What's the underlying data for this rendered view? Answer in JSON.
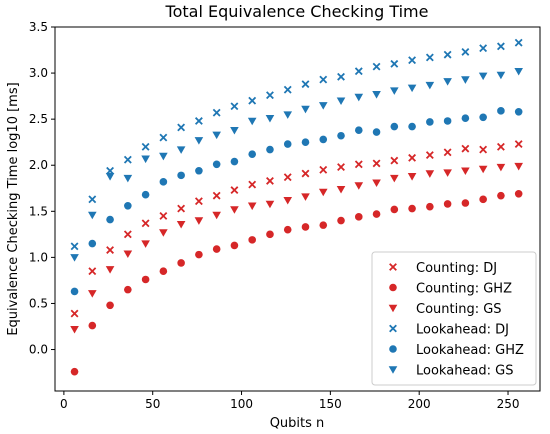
{
  "chart_data": {
    "type": "scatter",
    "title": "Total Equivalence Checking Time",
    "xlabel": "Qubits n",
    "ylabel": "Equivalence Checking Time log10 [ms]",
    "xlim": [
      -5,
      268
    ],
    "ylim": [
      -0.45,
      3.5
    ],
    "xticks": [
      0,
      50,
      100,
      150,
      200,
      250
    ],
    "xtick_labels": [
      "0",
      "50",
      "100",
      "150",
      "200",
      "250"
    ],
    "yticks": [
      0.0,
      0.5,
      1.0,
      1.5,
      2.0,
      2.5,
      3.0,
      3.5
    ],
    "ytick_labels": [
      "0.0",
      "0.5",
      "1.0",
      "1.5",
      "2.0",
      "2.5",
      "3.0",
      "3.5"
    ],
    "grid": false,
    "legend_position": "lower-right",
    "x": [
      6,
      16,
      26,
      36,
      46,
      56,
      66,
      76,
      86,
      96,
      106,
      116,
      126,
      136,
      146,
      156,
      166,
      176,
      186,
      196,
      206,
      216,
      226,
      236,
      246,
      256
    ],
    "series": [
      {
        "name": "Counting: DJ",
        "marker": "x",
        "color": "#d62728",
        "values": [
          0.39,
          0.85,
          1.08,
          1.25,
          1.37,
          1.45,
          1.53,
          1.61,
          1.67,
          1.73,
          1.79,
          1.83,
          1.87,
          1.91,
          1.95,
          1.98,
          2.01,
          2.02,
          2.05,
          2.08,
          2.11,
          2.14,
          2.18,
          2.17,
          2.2,
          2.23
        ]
      },
      {
        "name": "Counting: GHZ",
        "marker": "o",
        "color": "#d62728",
        "values": [
          -0.24,
          0.26,
          0.48,
          0.65,
          0.76,
          0.85,
          0.94,
          1.03,
          1.09,
          1.13,
          1.19,
          1.25,
          1.3,
          1.33,
          1.35,
          1.4,
          1.44,
          1.47,
          1.52,
          1.53,
          1.55,
          1.58,
          1.59,
          1.63,
          1.67,
          1.69
        ]
      },
      {
        "name": "Counting: GS",
        "marker": "v",
        "color": "#d62728",
        "values": [
          0.22,
          0.61,
          0.87,
          1.04,
          1.15,
          1.27,
          1.36,
          1.4,
          1.46,
          1.52,
          1.56,
          1.58,
          1.62,
          1.66,
          1.71,
          1.74,
          1.78,
          1.81,
          1.86,
          1.88,
          1.91,
          1.92,
          1.94,
          1.96,
          1.98,
          1.99
        ]
      },
      {
        "name": "Lookahead: DJ",
        "marker": "x",
        "color": "#1f77b4",
        "values": [
          1.12,
          1.63,
          1.94,
          2.06,
          2.2,
          2.3,
          2.41,
          2.48,
          2.57,
          2.64,
          2.7,
          2.76,
          2.82,
          2.88,
          2.93,
          2.96,
          3.02,
          3.07,
          3.1,
          3.14,
          3.17,
          3.2,
          3.23,
          3.27,
          3.29,
          3.33
        ]
      },
      {
        "name": "Lookahead: GHZ",
        "marker": "o",
        "color": "#1f77b4",
        "values": [
          0.63,
          1.15,
          1.41,
          1.56,
          1.68,
          1.82,
          1.89,
          1.94,
          2.01,
          2.04,
          2.12,
          2.17,
          2.23,
          2.25,
          2.28,
          2.32,
          2.38,
          2.36,
          2.42,
          2.42,
          2.47,
          2.48,
          2.51,
          2.52,
          2.59,
          2.58
        ]
      },
      {
        "name": "Lookahead: GS",
        "marker": "v",
        "color": "#1f77b4",
        "values": [
          1.0,
          1.46,
          1.88,
          1.86,
          2.07,
          2.1,
          2.17,
          2.27,
          2.33,
          2.38,
          2.48,
          2.51,
          2.55,
          2.61,
          2.65,
          2.7,
          2.74,
          2.77,
          2.81,
          2.84,
          2.87,
          2.91,
          2.93,
          2.97,
          2.98,
          3.02
        ]
      }
    ]
  }
}
